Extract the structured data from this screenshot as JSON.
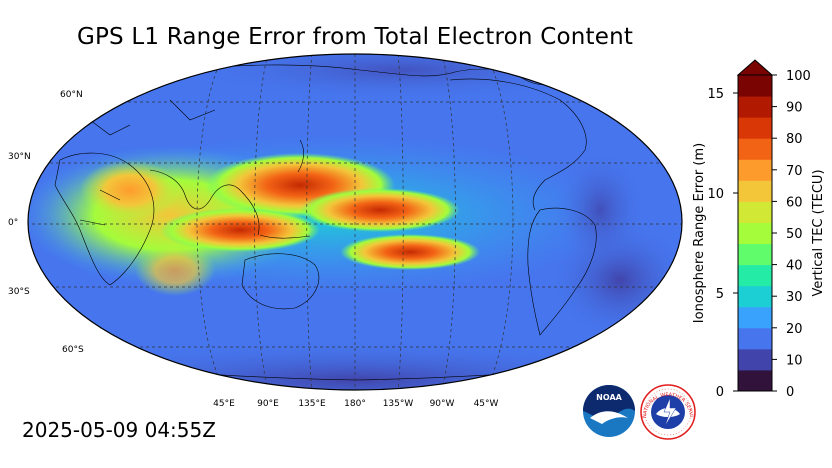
{
  "title": "GPS L1 Range Error from Total Electron Content",
  "timestamp": "2025-05-09 04:55Z",
  "map": {
    "lat_labels": [
      "60°N",
      "30°N",
      "0°",
      "30°S",
      "60°S"
    ],
    "lon_labels": [
      "45°E",
      "90°E",
      "135°E",
      "180°",
      "135°W",
      "90°W",
      "45°W"
    ]
  },
  "colorbar": {
    "left_label": "Ionosphere Range Error (m)",
    "right_label": "Vertical TEC (TECU)",
    "left_ticks": [
      "15",
      "10",
      "5",
      "0"
    ],
    "right_ticks": [
      "100",
      "90",
      "80",
      "70",
      "60",
      "50",
      "40",
      "30",
      "20",
      "10",
      "0"
    ],
    "colors": [
      "#30123b",
      "#4145ab",
      "#4675ed",
      "#39a2fc",
      "#1bcfd4",
      "#24eca6",
      "#61fc6c",
      "#a4fc3b",
      "#d1e834",
      "#f3c63a",
      "#fe9b2d",
      "#f36315",
      "#d93806",
      "#b11901",
      "#7a0402"
    ]
  },
  "logos": {
    "noaa_text": "NOAA",
    "nws_text": "NATIONAL WEATHER SERVICE"
  }
}
